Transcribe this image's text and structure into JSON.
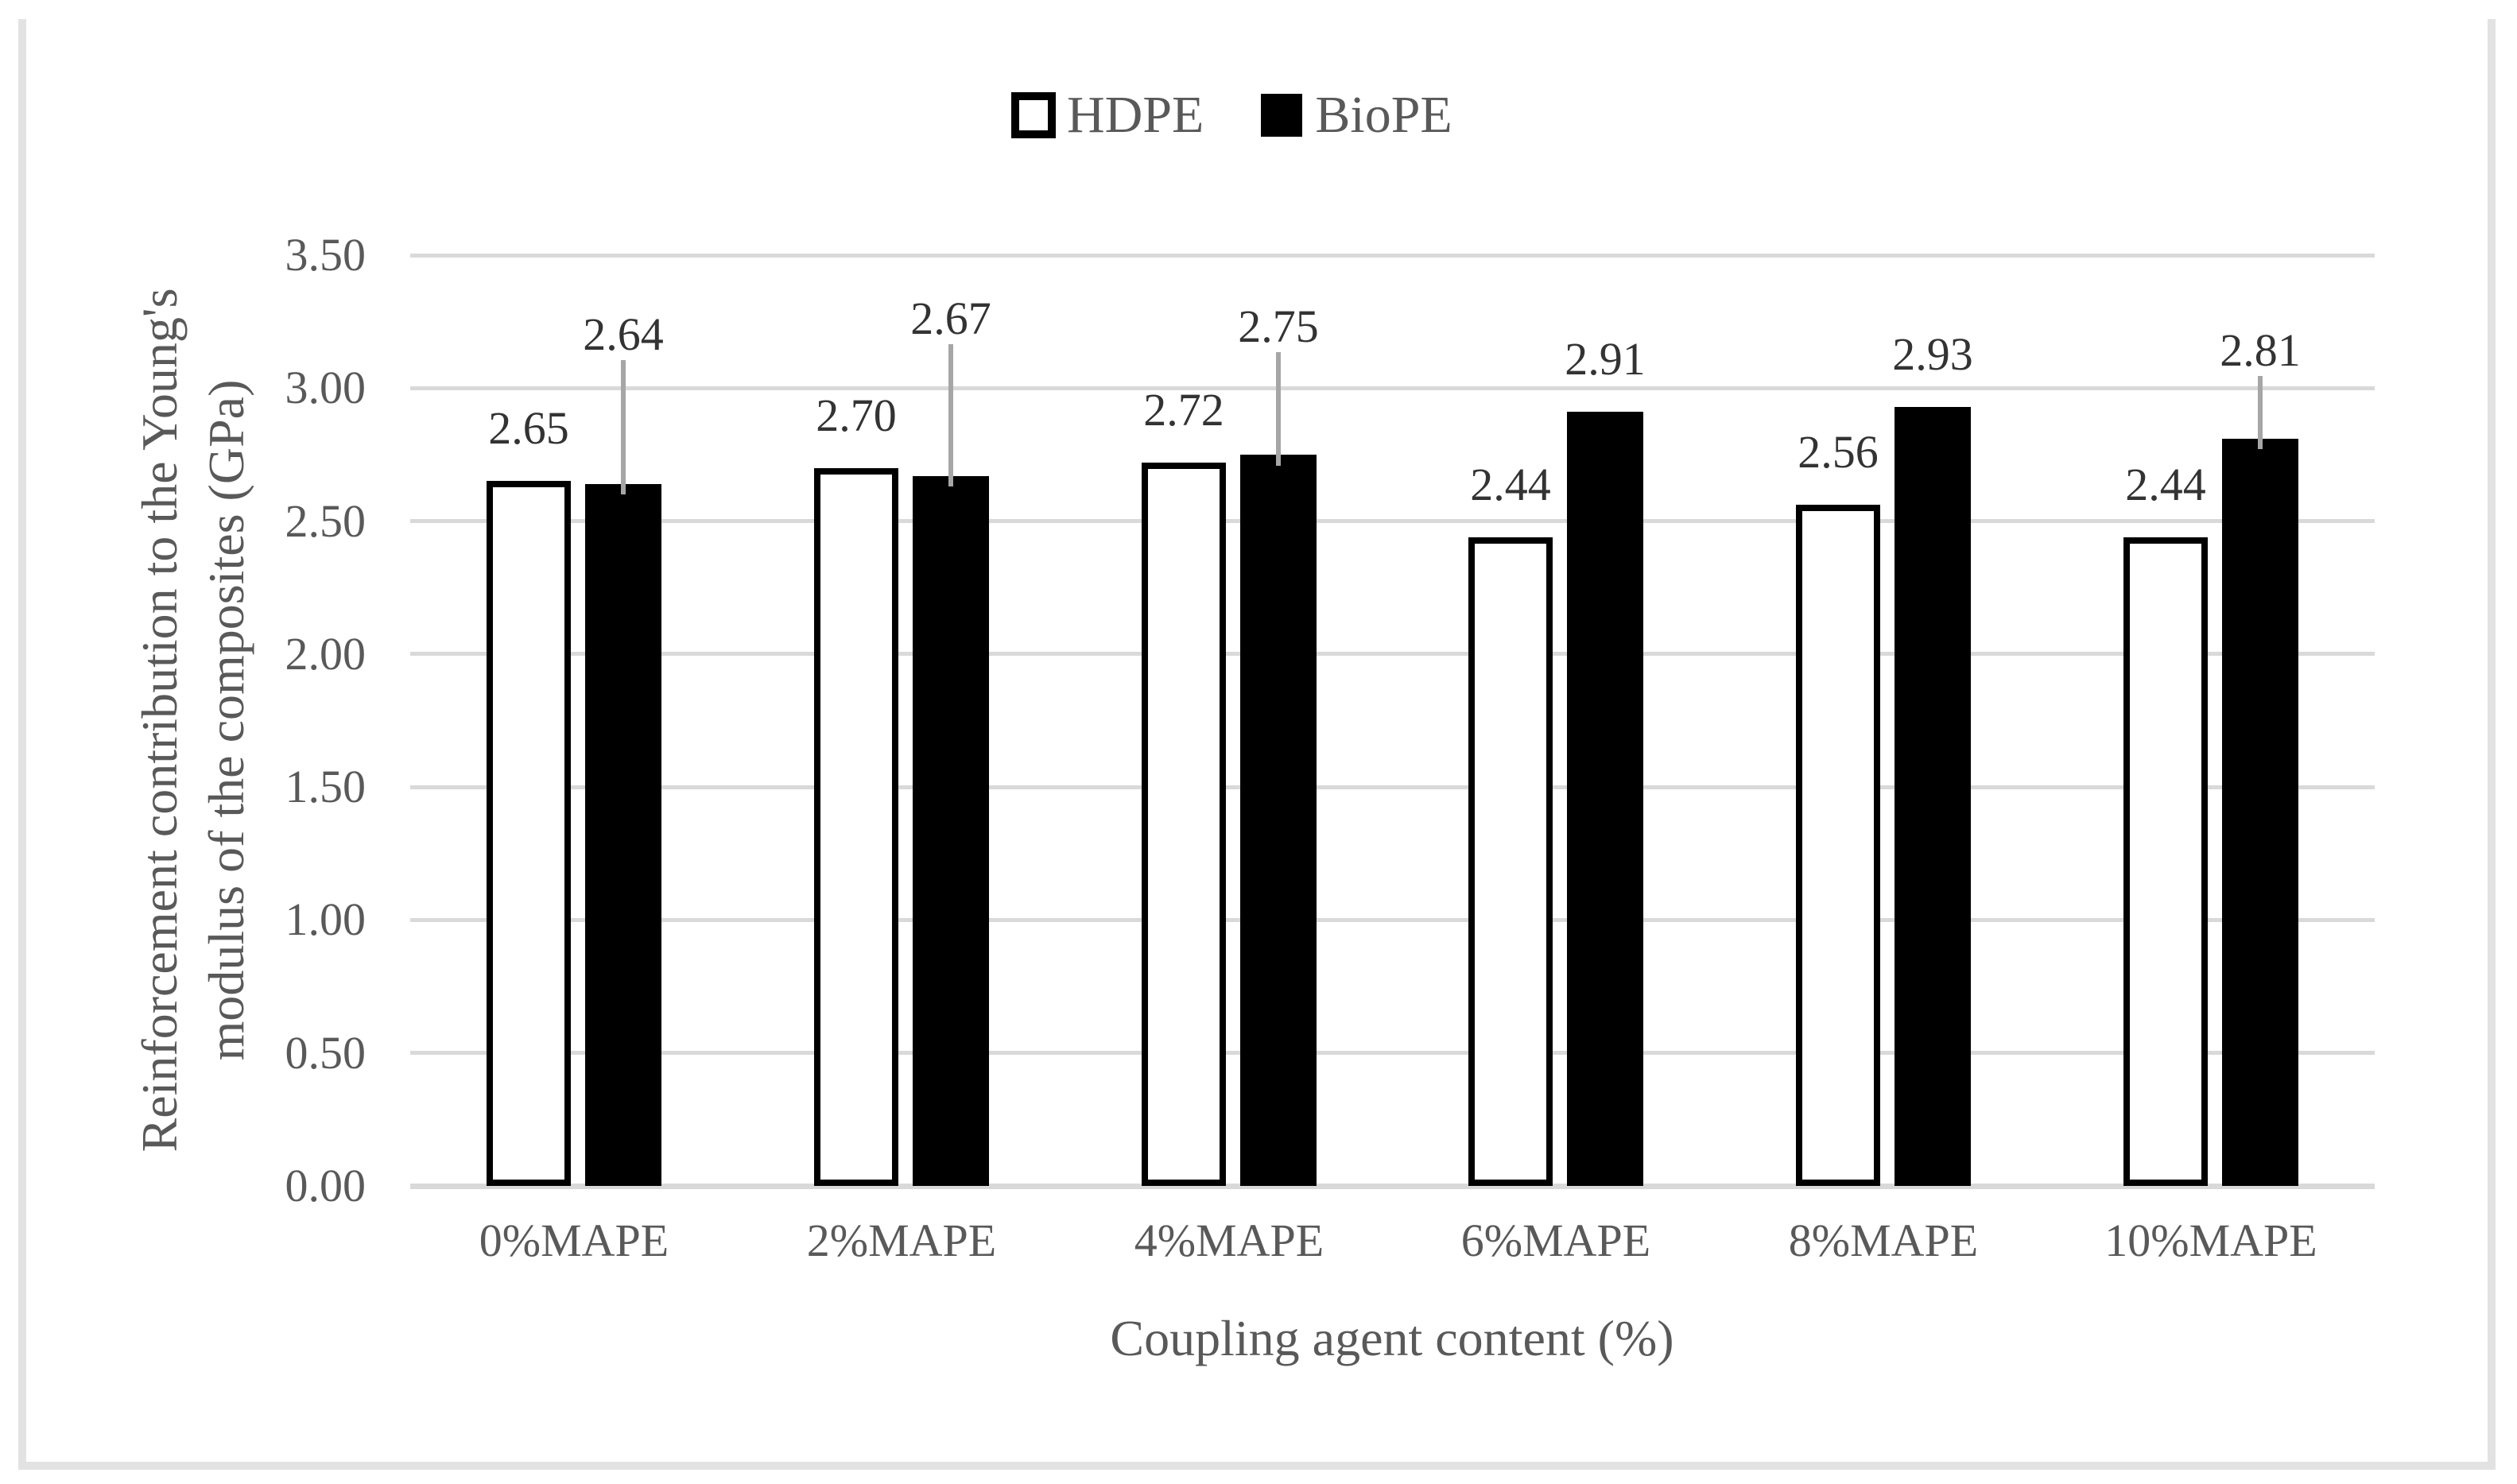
{
  "figure": {
    "background": "#ffffff",
    "frame_color": "#e2e2e2"
  },
  "legend": {
    "position": "top-center",
    "items": [
      {
        "label": "HDPE",
        "swatch_style": "white-filled-black-outline"
      },
      {
        "label": "BioPE",
        "swatch_style": "black-filled"
      }
    ]
  },
  "axes": {
    "y_title_line1": "Reinforcement contribution to the Young's",
    "y_title_line2": "modulus of the composites (GPa)",
    "x_title": "Coupling agent content (%)"
  },
  "chart_data": {
    "type": "bar",
    "title": "",
    "categories": [
      "0%MAPE",
      "2%MAPE",
      "4%MAPE",
      "6%MAPE",
      "8%MAPE",
      "10%MAPE"
    ],
    "series": [
      {
        "name": "HDPE",
        "fill": "#ffffff",
        "stroke": "#000000",
        "values": [
          2.65,
          2.7,
          2.72,
          2.44,
          2.56,
          2.44
        ],
        "labels": [
          "2.65",
          "2.70",
          "2.72",
          "2.44",
          "2.56",
          "2.44"
        ]
      },
      {
        "name": "BioPE",
        "fill": "#000000",
        "stroke": "#000000",
        "values": [
          2.64,
          2.67,
          2.75,
          2.91,
          2.93,
          2.81
        ],
        "labels": [
          "2.64",
          "2.67",
          "2.75",
          "2.91",
          "2.93",
          "2.81"
        ],
        "callout_label_positions": [
          3.2,
          3.26,
          3.23,
          null,
          null,
          3.14
        ]
      }
    ],
    "xlabel": "Coupling agent content (%)",
    "ylabel": "Reinforcement contribution to the Young's modulus of the composites (GPa)",
    "ylim": [
      0,
      3.5
    ],
    "ytick_step": 0.5,
    "yticks": [
      "0.00",
      "0.50",
      "1.00",
      "1.50",
      "2.00",
      "2.50",
      "3.00",
      "3.50"
    ],
    "grid": true,
    "legend_position": "top",
    "colors": {
      "grid": "#d9d9d9",
      "axis_line": "#d9d9d9",
      "tick_text": "#595959",
      "data_label_text": "#333333",
      "leader_line": "#a6a6a6"
    }
  }
}
